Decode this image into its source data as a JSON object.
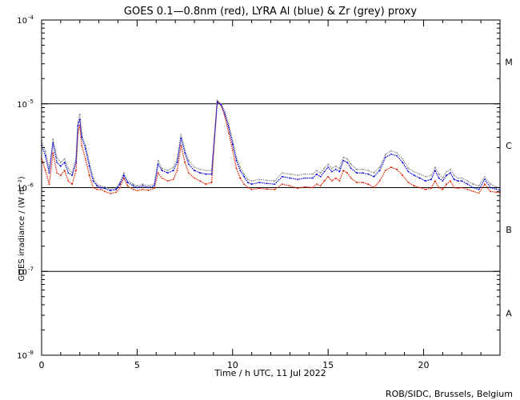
{
  "chart_data": {
    "type": "line",
    "title": "GOES 0.1—0.8nm (red), LYRA Al (blue) & Zr (grey) proxy",
    "xlabel": "Time / h UTC, 11 Jul 2022",
    "ylabel": "GOES irradiance / (W m⁻²)",
    "xlim": [
      0,
      24
    ],
    "ylim": [
      1e-08,
      0.0001
    ],
    "yscale": "log",
    "x_ticks": [
      0,
      5,
      10,
      15,
      20
    ],
    "y_ticks": [
      {
        "value": 1e-08,
        "base": "10",
        "exp": "-8"
      },
      {
        "value": 1e-07,
        "base": "10",
        "exp": "-7"
      },
      {
        "value": 1e-06,
        "base": "10",
        "exp": "-6"
      },
      {
        "value": 1e-05,
        "base": "10",
        "exp": "-5"
      },
      {
        "value": 0.0001,
        "base": "10",
        "exp": "-4"
      }
    ],
    "flare_class_lines": [
      1e-07,
      1e-06,
      1e-05
    ],
    "flare_classes": [
      {
        "label": "A",
        "value": 3.16e-08
      },
      {
        "label": "B",
        "value": 3.16e-07
      },
      {
        "label": "C",
        "value": 3.16e-06
      },
      {
        "label": "M",
        "value": 3.16e-05
      }
    ],
    "grid": false,
    "series": [
      {
        "name": "GOES 0.1—0.8nm",
        "color": "#e02000",
        "x": [
          0,
          0.2,
          0.4,
          0.6,
          0.8,
          1.0,
          1.2,
          1.4,
          1.6,
          1.8,
          1.9,
          2.0,
          2.1,
          2.3,
          2.5,
          2.7,
          2.9,
          3.1,
          3.3,
          3.6,
          3.9,
          4.1,
          4.3,
          4.5,
          4.8,
          5.0,
          5.3,
          5.6,
          5.9,
          6.1,
          6.3,
          6.6,
          6.9,
          7.1,
          7.3,
          7.5,
          7.7,
          8.0,
          8.3,
          8.6,
          8.9,
          9.2,
          9.4,
          9.6,
          9.8,
          10.0,
          10.2,
          10.4,
          10.6,
          10.8,
          11.0,
          11.4,
          11.8,
          12.2,
          12.6,
          13.0,
          13.4,
          13.8,
          14.2,
          14.4,
          14.6,
          14.8,
          15.0,
          15.2,
          15.4,
          15.6,
          15.8,
          16.0,
          16.2,
          16.5,
          16.8,
          17.1,
          17.4,
          17.7,
          18.0,
          18.3,
          18.6,
          18.9,
          19.2,
          19.5,
          19.8,
          20.1,
          20.4,
          20.6,
          20.8,
          21.0,
          21.2,
          21.4,
          21.6,
          21.8,
          22.0,
          22.3,
          22.6,
          22.9,
          23.2,
          23.5,
          23.8,
          24.0
        ],
        "y": [
          2.2e-06,
          1.6e-06,
          1.1e-06,
          2.6e-06,
          1.5e-06,
          1.4e-06,
          1.6e-06,
          1.2e-06,
          1.1e-06,
          1.6e-06,
          4.5e-06,
          5.5e-06,
          3.2e-06,
          2.2e-06,
          1.4e-06,
          1e-06,
          9.5e-07,
          9.5e-07,
          9e-07,
          8.5e-07,
          8.8e-07,
          1e-06,
          1.3e-06,
          1.05e-06,
          9.5e-07,
          9.2e-07,
          9.5e-07,
          9.3e-07,
          9.8e-07,
          1.5e-06,
          1.3e-06,
          1.2e-06,
          1.25e-06,
          1.6e-06,
          3.2e-06,
          2e-06,
          1.5e-06,
          1.3e-06,
          1.2e-06,
          1.1e-06,
          1.15e-06,
          1.1e-05,
          9.5e-06,
          7e-06,
          4.5e-06,
          2.8e-06,
          1.7e-06,
          1.3e-06,
          1.1e-06,
          1e-06,
          9.5e-07,
          9.8e-07,
          9.6e-07,
          9.5e-07,
          1.1e-06,
          1.05e-06,
          9.8e-07,
          1.02e-06,
          1e-06,
          1.1e-06,
          1.05e-06,
          1.2e-06,
          1.35e-06,
          1.2e-06,
          1.3e-06,
          1.2e-06,
          1.6e-06,
          1.5e-06,
          1.3e-06,
          1.15e-06,
          1.15e-06,
          1.1e-06,
          1e-06,
          1.2e-06,
          1.6e-06,
          1.75e-06,
          1.65e-06,
          1.4e-06,
          1.15e-06,
          1.05e-06,
          1e-06,
          9.5e-07,
          9.8e-07,
          1.2e-06,
          1e-06,
          9.5e-07,
          1.1e-06,
          1.2e-06,
          1e-06,
          9.8e-07,
          1e-06,
          9.5e-07,
          9e-07,
          8.6e-07,
          1.1e-06,
          9e-07,
          8.8e-07,
          8.7e-07
        ]
      },
      {
        "name": "LYRA Al",
        "color": "#0000dd",
        "x": [
          0,
          0.2,
          0.4,
          0.6,
          0.8,
          1.0,
          1.2,
          1.4,
          1.6,
          1.8,
          1.9,
          2.0,
          2.1,
          2.3,
          2.5,
          2.7,
          2.9,
          3.1,
          3.3,
          3.6,
          3.9,
          4.1,
          4.3,
          4.5,
          4.8,
          5.0,
          5.3,
          5.6,
          5.9,
          6.1,
          6.3,
          6.6,
          6.9,
          7.1,
          7.3,
          7.5,
          7.7,
          8.0,
          8.3,
          8.6,
          8.9,
          9.2,
          9.4,
          9.6,
          9.8,
          10.0,
          10.2,
          10.4,
          10.6,
          10.8,
          11.0,
          11.4,
          11.8,
          12.2,
          12.6,
          13.0,
          13.4,
          13.8,
          14.2,
          14.4,
          14.6,
          14.8,
          15.0,
          15.2,
          15.4,
          15.6,
          15.8,
          16.0,
          16.2,
          16.5,
          16.8,
          17.1,
          17.4,
          17.7,
          18.0,
          18.3,
          18.6,
          18.9,
          19.2,
          19.5,
          19.8,
          20.1,
          20.4,
          20.6,
          20.8,
          21.0,
          21.2,
          21.4,
          21.6,
          21.8,
          22.0,
          22.3,
          22.6,
          22.9,
          23.2,
          23.5,
          23.8,
          24.0
        ],
        "y": [
          3.2e-06,
          2.4e-06,
          1.5e-06,
          3.4e-06,
          2e-06,
          1.8e-06,
          2e-06,
          1.5e-06,
          1.4e-06,
          2e-06,
          5.5e-06,
          6.5e-06,
          4e-06,
          2.9e-06,
          1.8e-06,
          1.2e-06,
          1.05e-06,
          1e-06,
          9.8e-07,
          9.2e-07,
          9.5e-07,
          1.1e-06,
          1.4e-06,
          1.15e-06,
          1.05e-06,
          1e-06,
          1.05e-06,
          1e-06,
          1.05e-06,
          1.9e-06,
          1.6e-06,
          1.5e-06,
          1.6e-06,
          2e-06,
          3.9e-06,
          2.6e-06,
          1.9e-06,
          1.6e-06,
          1.5e-06,
          1.45e-06,
          1.45e-06,
          1.05e-05,
          9.8e-06,
          7.5e-06,
          5.2e-06,
          3.3e-06,
          2.1e-06,
          1.6e-06,
          1.35e-06,
          1.15e-06,
          1.1e-06,
          1.15e-06,
          1.12e-06,
          1.1e-06,
          1.35e-06,
          1.3e-06,
          1.25e-06,
          1.3e-06,
          1.3e-06,
          1.45e-06,
          1.35e-06,
          1.55e-06,
          1.75e-06,
          1.55e-06,
          1.65e-06,
          1.55e-06,
          2.1e-06,
          2e-06,
          1.7e-06,
          1.5e-06,
          1.5e-06,
          1.45e-06,
          1.35e-06,
          1.6e-06,
          2.3e-06,
          2.5e-06,
          2.4e-06,
          2e-06,
          1.55e-06,
          1.4e-06,
          1.3e-06,
          1.2e-06,
          1.25e-06,
          1.6e-06,
          1.3e-06,
          1.2e-06,
          1.4e-06,
          1.5e-06,
          1.25e-06,
          1.2e-06,
          1.2e-06,
          1.1e-06,
          1e-06,
          9.5e-07,
          1.25e-06,
          1e-06,
          9.6e-07,
          9.4e-07
        ]
      },
      {
        "name": "Zr",
        "color": "#909090",
        "x": [
          0,
          0.2,
          0.4,
          0.6,
          0.8,
          1.0,
          1.2,
          1.4,
          1.6,
          1.8,
          1.9,
          2.0,
          2.1,
          2.3,
          2.5,
          2.7,
          2.9,
          3.1,
          3.3,
          3.6,
          3.9,
          4.1,
          4.3,
          4.5,
          4.8,
          5.0,
          5.3,
          5.6,
          5.9,
          6.1,
          6.3,
          6.6,
          6.9,
          7.1,
          7.3,
          7.5,
          7.7,
          8.0,
          8.3,
          8.6,
          8.9,
          9.2,
          9.4,
          9.6,
          9.8,
          10.0,
          10.2,
          10.4,
          10.6,
          10.8,
          11.0,
          11.4,
          11.8,
          12.2,
          12.6,
          13.0,
          13.4,
          13.8,
          14.2,
          14.4,
          14.6,
          14.8,
          15.0,
          15.2,
          15.4,
          15.6,
          15.8,
          16.0,
          16.2,
          16.5,
          16.8,
          17.1,
          17.4,
          17.7,
          18.0,
          18.3,
          18.6,
          18.9,
          19.2,
          19.5,
          19.8,
          20.1,
          20.4,
          20.6,
          20.8,
          21.0,
          21.2,
          21.4,
          21.6,
          21.8,
          22.0,
          22.3,
          22.6,
          22.9,
          23.2,
          23.5,
          23.8,
          24.0
        ],
        "y": [
          3.6e-06,
          2.7e-06,
          1.7e-06,
          3.8e-06,
          2.3e-06,
          2e-06,
          2.2e-06,
          1.7e-06,
          1.5e-06,
          2.2e-06,
          6e-06,
          7.5e-06,
          4.4e-06,
          3.2e-06,
          2e-06,
          1.3e-06,
          1.1e-06,
          1.05e-06,
          1.02e-06,
          9.6e-07,
          9.8e-07,
          1.15e-06,
          1.5e-06,
          1.2e-06,
          1.1e-06,
          1.05e-06,
          1.1e-06,
          1.05e-06,
          1.1e-06,
          2.1e-06,
          1.7e-06,
          1.6e-06,
          1.75e-06,
          2.2e-06,
          4.3e-06,
          2.8e-06,
          2.1e-06,
          1.75e-06,
          1.65e-06,
          1.6e-06,
          1.6e-06,
          1.1e-05,
          1e-05,
          8e-06,
          5.6e-06,
          3.6e-06,
          2.3e-06,
          1.75e-06,
          1.45e-06,
          1.25e-06,
          1.2e-06,
          1.25e-06,
          1.22e-06,
          1.2e-06,
          1.5e-06,
          1.45e-06,
          1.4e-06,
          1.45e-06,
          1.45e-06,
          1.6e-06,
          1.5e-06,
          1.7e-06,
          1.9e-06,
          1.7e-06,
          1.8e-06,
          1.7e-06,
          2.3e-06,
          2.2e-06,
          1.9e-06,
          1.65e-06,
          1.65e-06,
          1.6e-06,
          1.5e-06,
          1.75e-06,
          2.5e-06,
          2.75e-06,
          2.6e-06,
          2.2e-06,
          1.7e-06,
          1.55e-06,
          1.45e-06,
          1.35e-06,
          1.4e-06,
          1.75e-06,
          1.45e-06,
          1.3e-06,
          1.55e-06,
          1.65e-06,
          1.4e-06,
          1.3e-06,
          1.3e-06,
          1.2e-06,
          1.1e-06,
          1.05e-06,
          1.35e-06,
          1.1e-06,
          1.02e-06,
          1e-06
        ]
      }
    ]
  },
  "credit": "ROB/SIDC, Brussels, Belgium"
}
